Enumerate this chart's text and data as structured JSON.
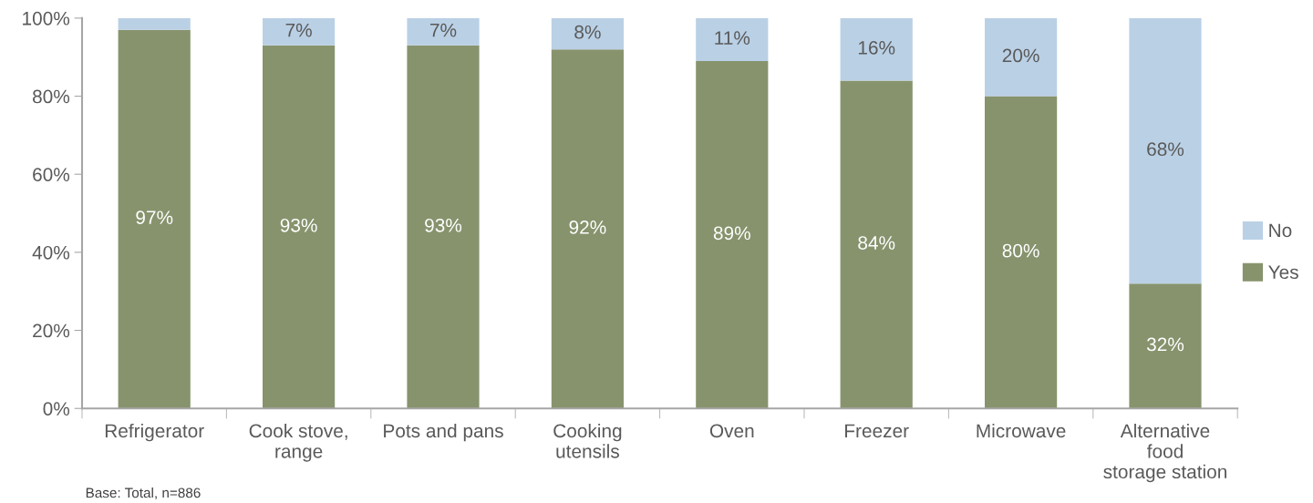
{
  "chart_data": {
    "type": "bar",
    "stacked": true,
    "categories": [
      "Refrigerator",
      "Cook stove,\nrange",
      "Pots and pans",
      "Cooking\nutensils",
      "Oven",
      "Freezer",
      "Microwave",
      "Alternative\nfood\nstorage station"
    ],
    "series": [
      {
        "name": "Yes",
        "color": "#87936d",
        "values": [
          97,
          93,
          93,
          92,
          89,
          84,
          80,
          32
        ],
        "value_labels": [
          "97%",
          "93%",
          "93%",
          "92%",
          "89%",
          "84%",
          "80%",
          "32%"
        ]
      },
      {
        "name": "No",
        "color": "#bad0e5",
        "values": [
          3,
          7,
          7,
          8,
          11,
          16,
          20,
          68
        ],
        "value_labels": [
          null,
          "7%",
          "7%",
          "8%",
          "11%",
          "16%",
          "20%",
          "68%"
        ]
      }
    ],
    "ylim": [
      0,
      100
    ],
    "yticks": [
      {
        "value": 0,
        "label": "0%"
      },
      {
        "value": 20,
        "label": "20%"
      },
      {
        "value": 40,
        "label": "40%"
      },
      {
        "value": 60,
        "label": "60%"
      },
      {
        "value": 80,
        "label": "80%"
      },
      {
        "value": 100,
        "label": "100%"
      }
    ],
    "grid": false,
    "legend": "right",
    "annotations": [
      "Base: Total, n=886"
    ]
  }
}
